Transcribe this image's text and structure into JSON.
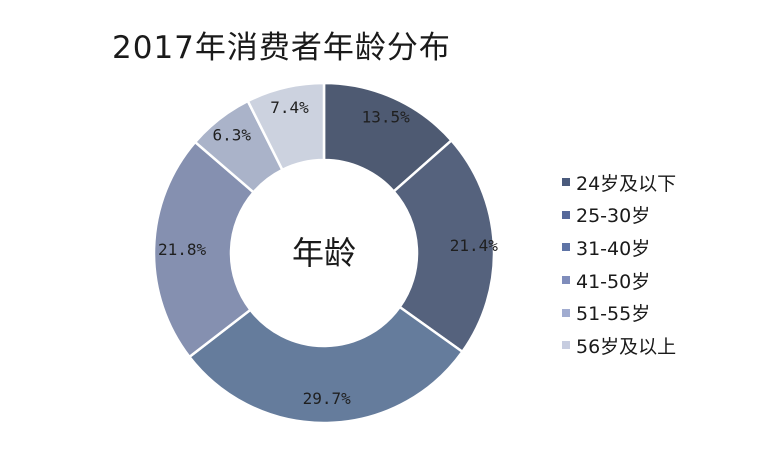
{
  "title": "2017年消费者年龄分布",
  "chart_data": {
    "type": "pie",
    "title": "2017年消费者年龄分布",
    "center_label": "年龄",
    "categories": [
      "24岁及以下",
      "25-30岁",
      "31-40岁",
      "41-50岁",
      "51-55岁",
      "56岁及以上"
    ],
    "values": [
      13.5,
      21.4,
      29.7,
      21.8,
      6.3,
      7.4
    ],
    "value_labels": [
      "13.5%",
      "21.4%",
      "29.7%",
      "21.8%",
      "6.3%",
      "7.4%"
    ],
    "colors": [
      "#4e5a72",
      "#55627d",
      "#657c9c",
      "#8590b0",
      "#aab3c9",
      "#ccd2df"
    ],
    "legend_colors": [
      "#4a5a7c",
      "#56689a",
      "#5f74a6",
      "#7f8dbb",
      "#a1acd0",
      "#c7cde0"
    ],
    "legend_position": "right"
  }
}
